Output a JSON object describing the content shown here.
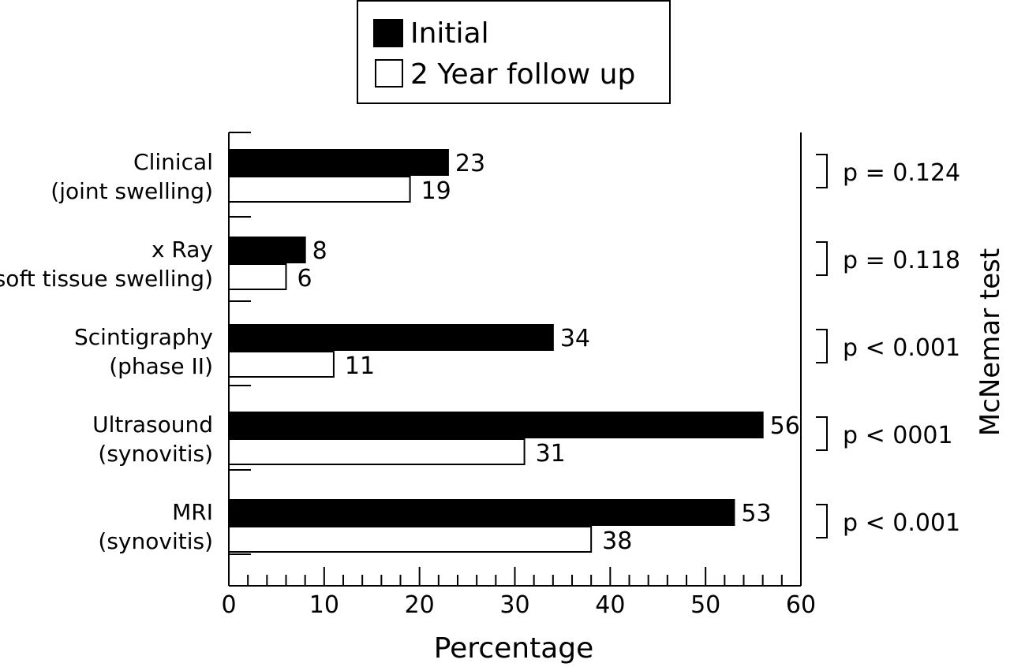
{
  "chart_data": {
    "type": "bar",
    "orientation": "horizontal",
    "categories": [
      [
        "Clinical",
        "(joint swelling)"
      ],
      [
        "x Ray",
        "(soft tissue swelling)"
      ],
      [
        "Scintigraphy",
        "(phase II)"
      ],
      [
        "Ultrasound",
        "(synovitis)"
      ],
      [
        "MRI",
        "(synovitis)"
      ]
    ],
    "series": [
      {
        "name": "Initial",
        "color": "#000000",
        "values": [
          23,
          8,
          34,
          56,
          53
        ]
      },
      {
        "name": "2 Year follow up",
        "color": "#ffffff",
        "values": [
          19,
          6,
          11,
          31,
          38
        ]
      }
    ],
    "xlabel": "Percentage",
    "xlim": [
      0,
      60
    ],
    "xticks": [
      "0",
      "10",
      "20",
      "30",
      "40",
      "50",
      "60"
    ],
    "p_values": [
      "p = 0.124",
      "p = 0.118",
      "p < 0.001",
      "p < 0001",
      "p < 0.001"
    ],
    "side_label": "McNemar test",
    "legend_position": "top-center"
  }
}
